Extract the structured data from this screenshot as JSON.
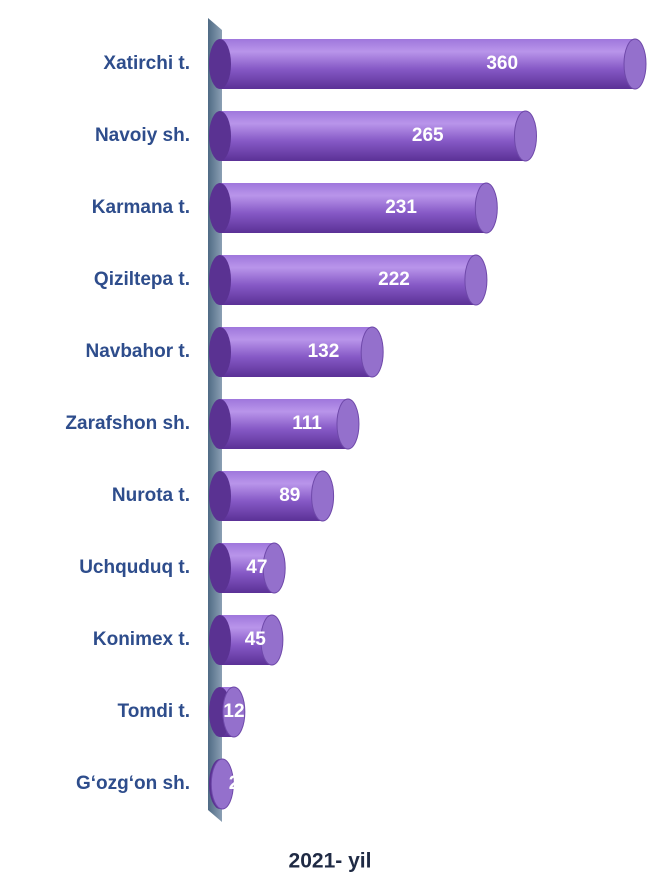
{
  "chart_data": {
    "type": "bar",
    "orientation": "horizontal",
    "title": "2021- yil",
    "categories": [
      "Xatirchi  t.",
      "Navoiy sh.",
      "Karmana t.",
      "Qiziltepa   t.",
      "Navbahor t.",
      "Zarafshon sh.",
      "Nurota  t.",
      "Uchquduq  t.",
      "Konimex  t.",
      "Tomdi  t.",
      "G‘ozg‘on sh."
    ],
    "values": [
      360,
      265,
      231,
      222,
      132,
      111,
      89,
      47,
      45,
      12,
      2
    ],
    "color": "#8a5cc8"
  }
}
